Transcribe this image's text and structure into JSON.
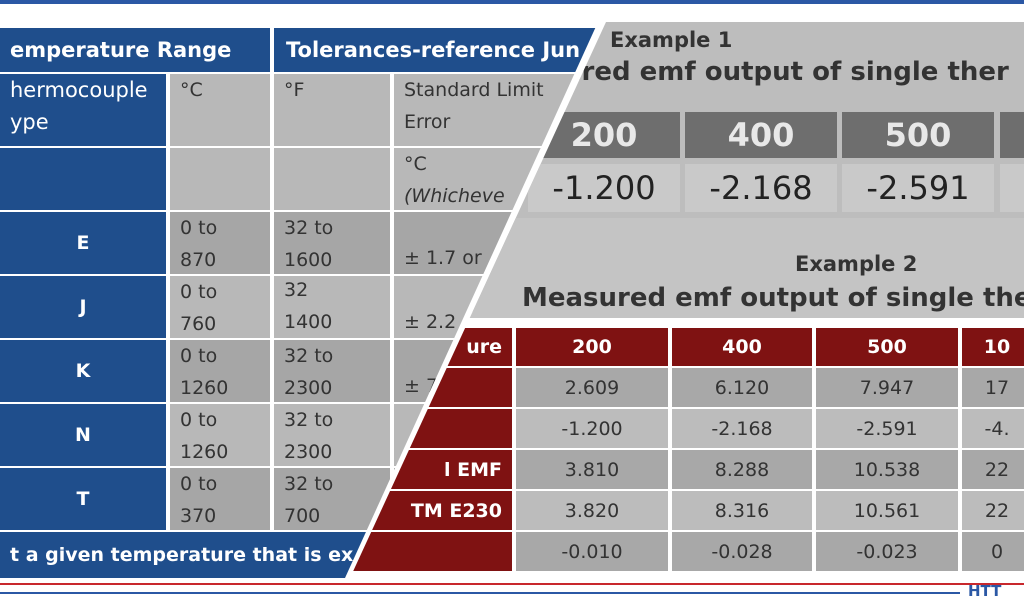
{
  "left_table": {
    "headers": [
      "emperature Range",
      "Tolerances-reference Jun"
    ],
    "subheader": {
      "type": "hermocouple ype",
      "c": "°C",
      "f": "°F",
      "limit": "Standard Limit Error",
      "unit": "°C",
      "note": "(Whicheve"
    },
    "rows": [
      {
        "type": "E",
        "c": "0 to 870",
        "f": "32 to 1600",
        "tol": "± 1.7 or"
      },
      {
        "type": "J",
        "c": "0 to 760",
        "f": "32 1400",
        "tol": "± 2.2"
      },
      {
        "type": "K",
        "c": "0 to 1260",
        "f": "32 to 2300",
        "tol": "± 7"
      },
      {
        "type": "N",
        "c": "0 to 1260",
        "f": "32 to 2300"
      },
      {
        "type": "T",
        "c": "0 to 370",
        "f": "32 to 700"
      }
    ],
    "footer": "t a given temperature that is ex"
  },
  "example1": {
    "title": "Example 1",
    "subtitle": "asured emf output of single ther",
    "headers": [
      "200",
      "400",
      "500"
    ],
    "values": [
      "-1.200",
      "-2.168",
      "-2.591"
    ]
  },
  "example2": {
    "title": "Example 2",
    "subtitle": "Measured emf output of single ther",
    "corner": "ure",
    "headers": [
      "200",
      "400",
      "500",
      "10"
    ],
    "rows": [
      {
        "cells": [
          "2.609",
          "6.120",
          "7.947",
          "17"
        ]
      },
      {
        "cells": [
          "-1.200",
          "-2.168",
          "-2.591",
          "-4."
        ]
      },
      {
        "label": "l EMF",
        "cells": [
          "3.810",
          "8.288",
          "10.538",
          "22"
        ]
      },
      {
        "label": "TM E230",
        "cells": [
          "3.820",
          "8.316",
          "10.561",
          "22"
        ]
      },
      {
        "cells": [
          "-0.010",
          "-0.028",
          "-0.023",
          "0"
        ]
      }
    ]
  },
  "footer": {
    "logo": "HTT"
  }
}
